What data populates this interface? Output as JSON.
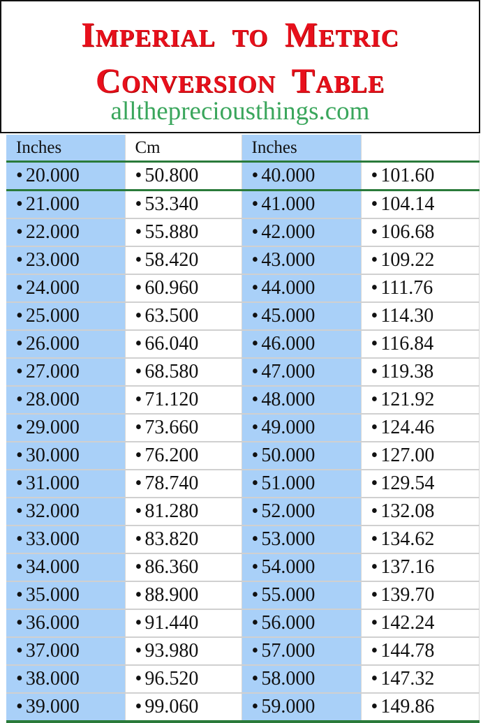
{
  "title": {
    "line1": "Imperial to Metric",
    "line2": "Conversion Table",
    "website": "allthepreciousthings.com"
  },
  "colors": {
    "title": "#e8101c",
    "website": "#3aa65c",
    "inches_column_bg": "#a9d0f8",
    "rule": "#2a7a3a"
  },
  "table": {
    "headers": [
      "Inches",
      "Cm",
      "Inches",
      ""
    ],
    "bullet": "•",
    "rows": [
      [
        "20.000",
        "50.800",
        "40.000",
        "101.60"
      ],
      [
        "21.000",
        "53.340",
        "41.000",
        "104.14"
      ],
      [
        "22.000",
        "55.880",
        "42.000",
        "106.68"
      ],
      [
        "23.000",
        "58.420",
        "43.000",
        "109.22"
      ],
      [
        "24.000",
        "60.960",
        "44.000",
        "111.76"
      ],
      [
        "25.000",
        "63.500",
        "45.000",
        "114.30"
      ],
      [
        "26.000",
        "66.040",
        "46.000",
        "116.84"
      ],
      [
        "27.000",
        "68.580",
        "47.000",
        "119.38"
      ],
      [
        "28.000",
        "71.120",
        "48.000",
        "121.92"
      ],
      [
        "29.000",
        "73.660",
        "49.000",
        "124.46"
      ],
      [
        "30.000",
        "76.200",
        "50.000",
        "127.00"
      ],
      [
        "31.000",
        "78.740",
        "51.000",
        "129.54"
      ],
      [
        "32.000",
        "81.280",
        "52.000",
        "132.08"
      ],
      [
        "33.000",
        "83.820",
        "53.000",
        "134.62"
      ],
      [
        "34.000",
        "86.360",
        "54.000",
        "137.16"
      ],
      [
        "35.000",
        "88.900",
        "55.000",
        "139.70"
      ],
      [
        "36.000",
        "91.440",
        "56.000",
        "142.24"
      ],
      [
        "37.000",
        "93.980",
        "57.000",
        "144.78"
      ],
      [
        "38.000",
        "96.520",
        "58.000",
        "147.32"
      ],
      [
        "39.000",
        "99.060",
        "59.000",
        "149.86"
      ]
    ]
  }
}
